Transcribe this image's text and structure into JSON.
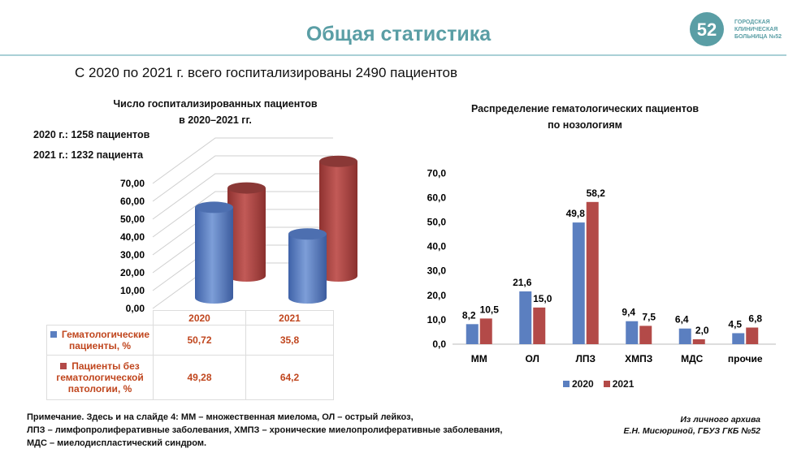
{
  "header": {
    "title": "Общая статистика",
    "logo_text": [
      "ГОРОДСКАЯ",
      "КЛИНИЧЕСКАЯ",
      "БОЛЬНИЦА №52"
    ],
    "logo_number": "52"
  },
  "subtitle": "С 2020 по 2021 г. всего госпитализированы 2490 пациентов",
  "colors": {
    "blue": "#5b7fc0",
    "red": "#b34a48",
    "accent": "#5a9ea5",
    "table_text": "#c0461e"
  },
  "chart_data": [
    {
      "type": "bar",
      "title": "Число госпитализированных пациентов в 2020–2021 гг.",
      "title_lines": [
        "Число госпитализированных пациентов",
        "в 2020–2021 гг."
      ],
      "notes": [
        "2020 г.: 1258 пациентов",
        "2021 г.: 1232 пациента"
      ],
      "categories": [
        "2020",
        "2021"
      ],
      "yticks": [
        "0,00",
        "10,00",
        "20,00",
        "30,00",
        "40,00",
        "50,00",
        "60,00",
        "70,00"
      ],
      "ylim": [
        0,
        70
      ],
      "series": [
        {
          "name": "Гематологические пациенты, %",
          "values": [
            50.72,
            35.8
          ],
          "labels": [
            "50,72",
            "35,8"
          ]
        },
        {
          "name": "Пациенты без гематологической патологии, %",
          "values": [
            49.28,
            64.2
          ],
          "labels": [
            "49,28",
            "64,2"
          ]
        }
      ]
    },
    {
      "type": "bar",
      "title": "Распределение гематологических пациентов по нозологиям",
      "title_lines": [
        "Распределение гематологических пациентов",
        "по нозологиям"
      ],
      "categories": [
        "ММ",
        "ОЛ",
        "ЛПЗ",
        "ХМПЗ",
        "МДС",
        "прочие"
      ],
      "yticks": [
        "0,0",
        "10,0",
        "20,0",
        "30,0",
        "40,0",
        "50,0",
        "60,0",
        "70,0"
      ],
      "ylim": [
        0,
        70
      ],
      "legend": "bottom",
      "series": [
        {
          "name": "2020",
          "values": [
            8.2,
            21.6,
            49.8,
            9.4,
            6.4,
            4.5
          ],
          "labels": [
            "8,2",
            "21,6",
            "49,8",
            "9,4",
            "6,4",
            "4,5"
          ]
        },
        {
          "name": "2021",
          "values": [
            10.5,
            15.0,
            58.2,
            7.5,
            2.0,
            6.8
          ],
          "labels": [
            "10,5",
            "15,0",
            "58,2",
            "7,5",
            "2,0",
            "6,8"
          ]
        }
      ]
    }
  ],
  "footnote": [
    "Примечание. Здесь и на слайде 4: ММ – множественная миелома, ОЛ – острый лейкоз,",
    "ЛПЗ – лимфопролиферативные заболевания, ХМПЗ – хронические миелопролиферативные заболевания,",
    "МДС – миелодиспластический синдром."
  ],
  "source": [
    "Из личного архива",
    "Е.Н. Мисюриной, ГБУЗ ГКБ №52"
  ]
}
